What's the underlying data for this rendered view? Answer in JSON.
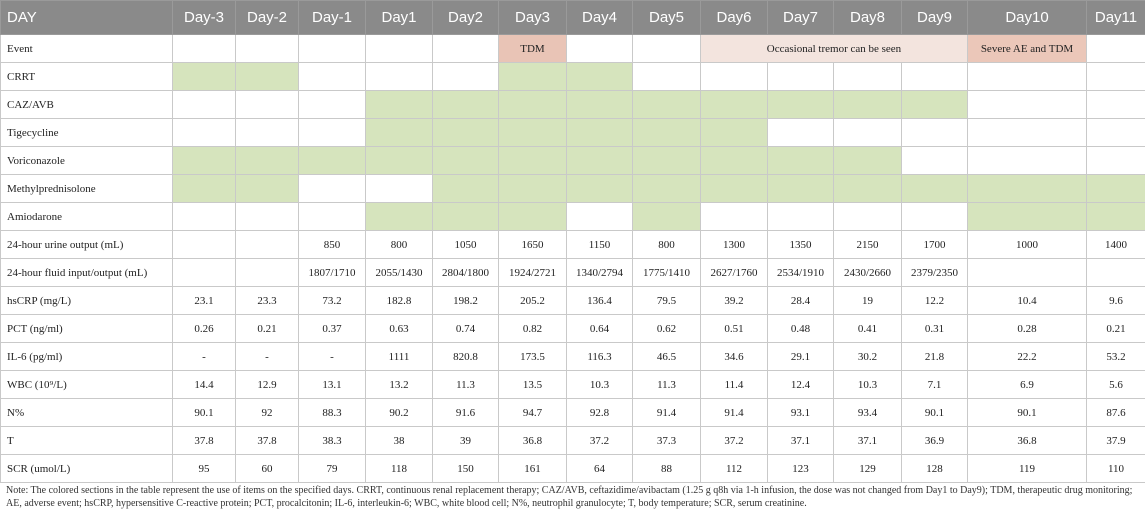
{
  "header": [
    "DAY",
    "Day-3",
    "Day-2",
    "Day-1",
    "Day1",
    "Day2",
    "Day3",
    "Day4",
    "Day5",
    "Day6",
    "Day7",
    "Day8",
    "Day9",
    "Day10",
    "Day11"
  ],
  "events": {
    "label": "Event",
    "tdm1": "TDM",
    "tremor": "Occasional tremor can be seen",
    "ae": "Severe AE and TDM"
  },
  "drug_rows": [
    {
      "label": "CRRT",
      "used": [
        1,
        1,
        0,
        0,
        0,
        1,
        1,
        0,
        0,
        0,
        0,
        0,
        0,
        0
      ]
    },
    {
      "label": "CAZ/AVB",
      "used": [
        0,
        0,
        0,
        1,
        1,
        1,
        1,
        1,
        1,
        1,
        1,
        1,
        0,
        0
      ]
    },
    {
      "label": "Tigecycline",
      "used": [
        0,
        0,
        0,
        1,
        1,
        1,
        1,
        1,
        1,
        0,
        0,
        0,
        0,
        0
      ]
    },
    {
      "label": "Voriconazole",
      "used": [
        1,
        1,
        1,
        1,
        1,
        1,
        1,
        1,
        1,
        1,
        1,
        0,
        0,
        0
      ]
    },
    {
      "label": "Methylprednisolone",
      "used": [
        1,
        1,
        0,
        0,
        1,
        1,
        1,
        1,
        1,
        1,
        1,
        1,
        1,
        1
      ]
    },
    {
      "label": "Amiodarone",
      "used": [
        0,
        0,
        0,
        1,
        1,
        1,
        0,
        1,
        0,
        0,
        0,
        0,
        1,
        1
      ]
    }
  ],
  "value_rows": [
    {
      "label": "24-hour urine output (mL)",
      "values": [
        "",
        "",
        "850",
        "800",
        "1050",
        "1650",
        "1150",
        "800",
        "1300",
        "1350",
        "2150",
        "1700",
        "1000",
        "1400"
      ]
    },
    {
      "label": "24-hour fluid input/output (mL)",
      "values": [
        "",
        "",
        "1807/1710",
        "2055/1430",
        "2804/1800",
        "1924/2721",
        "1340/2794",
        "1775/1410",
        "2627/1760",
        "2534/1910",
        "2430/2660",
        "2379/2350",
        "",
        ""
      ]
    },
    {
      "label": "hsCRP (mg/L)",
      "values": [
        "23.1",
        "23.3",
        "73.2",
        "182.8",
        "198.2",
        "205.2",
        "136.4",
        "79.5",
        "39.2",
        "28.4",
        "19",
        "12.2",
        "10.4",
        "9.6"
      ]
    },
    {
      "label": "PCT (ng/ml)",
      "values": [
        "0.26",
        "0.21",
        "0.37",
        "0.63",
        "0.74",
        "0.82",
        "0.64",
        "0.62",
        "0.51",
        "0.48",
        "0.41",
        "0.31",
        "0.28",
        "0.21"
      ]
    },
    {
      "label": "IL-6 (pg/ml)",
      "values": [
        "-",
        "-",
        "-",
        "1111",
        "820.8",
        "173.5",
        "116.3",
        "46.5",
        "34.6",
        "29.1",
        "30.2",
        "21.8",
        "22.2",
        "53.2"
      ]
    },
    {
      "label": "WBC (10⁹/L)",
      "values": [
        "14.4",
        "12.9",
        "13.1",
        "13.2",
        "11.3",
        "13.5",
        "10.3",
        "11.3",
        "11.4",
        "12.4",
        "10.3",
        "7.1",
        "6.9",
        "5.6"
      ]
    },
    {
      "label": "N%",
      "values": [
        "90.1",
        "92",
        "88.3",
        "90.2",
        "91.6",
        "94.7",
        "92.8",
        "91.4",
        "91.4",
        "93.1",
        "93.4",
        "90.1",
        "90.1",
        "87.6"
      ]
    },
    {
      "label": "T",
      "values": [
        "37.8",
        "37.8",
        "38.3",
        "38",
        "39",
        "36.8",
        "37.2",
        "37.3",
        "37.2",
        "37.1",
        "37.1",
        "36.9",
        "36.8",
        "37.9"
      ]
    },
    {
      "label": "SCR (umol/L)",
      "values": [
        "95",
        "60",
        "79",
        "118",
        "150",
        "161",
        "64",
        "88",
        "112",
        "123",
        "129",
        "128",
        "119",
        "110"
      ]
    }
  ],
  "note": "Note: The colored sections in the table represent the use of items on the specified days. CRRT, continuous renal replacement therapy; CAZ/AVB, ceftazidime/avibactam (1.25 g q8h via 1-h infusion, the dose was not changed from Day1 to Day9); TDM, therapeutic drug monitoring; AE, adverse event; hsCRP, hypersensitive C-reactive protein; PCT, procalcitonin; IL-6, interleukin-6; WBC, white blood cell; N%, neutrophil granulocyte; T, body temperature; SCR, serum creatinine.",
  "colors": {
    "used": "#d6e4bd",
    "tdm": "#e9c4b6",
    "tremor": "#f3e4de",
    "ae": "#ebc7b9",
    "header_bg": "#8a8a8a"
  }
}
